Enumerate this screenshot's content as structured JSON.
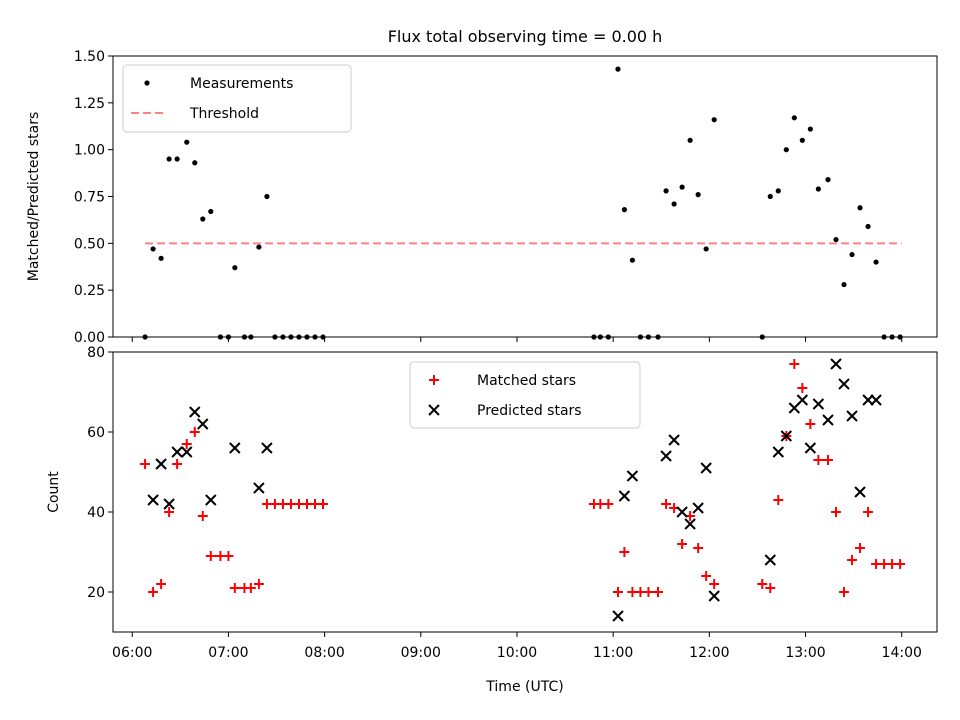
{
  "title": "Flux total observing time = 0.00 h",
  "chart_data": [
    {
      "type": "scatter",
      "ylabel": "Matched/Predicted stars",
      "xlabel": "",
      "xlim": [
        "05:48",
        "14:22"
      ],
      "ylim": [
        0,
        1.5
      ],
      "yticks": [
        0,
        0.25,
        0.5,
        0.75,
        1.0,
        1.25,
        1.5
      ],
      "ytick_labels": [
        "0.00",
        "0.25",
        "0.50",
        "0.75",
        "1.00",
        "1.25",
        "1.50"
      ],
      "legend_position": "upper-left",
      "legend": [
        "Measurements",
        "Threshold"
      ],
      "colors": {
        "measurements": "#000000",
        "threshold": "#ff8080"
      },
      "series": [
        {
          "name": "Measurements",
          "marker": "dot",
          "points": [
            [
              "06:08",
              0.0
            ],
            [
              "06:13",
              0.47
            ],
            [
              "06:18",
              0.42
            ],
            [
              "06:23",
              0.95
            ],
            [
              "06:28",
              0.95
            ],
            [
              "06:34",
              1.04
            ],
            [
              "06:39",
              0.93
            ],
            [
              "06:44",
              0.63
            ],
            [
              "06:49",
              0.67
            ],
            [
              "06:55",
              0.0
            ],
            [
              "07:00",
              0.0
            ],
            [
              "07:04",
              0.37
            ],
            [
              "07:10",
              0.0
            ],
            [
              "07:14",
              0.0
            ],
            [
              "07:19",
              0.48
            ],
            [
              "07:24",
              0.75
            ],
            [
              "07:29",
              0.0
            ],
            [
              "07:34",
              0.0
            ],
            [
              "07:39",
              0.0
            ],
            [
              "07:44",
              0.0
            ],
            [
              "07:49",
              0.0
            ],
            [
              "07:54",
              0.0
            ],
            [
              "07:59",
              0.0
            ],
            [
              "10:48",
              0.0
            ],
            [
              "10:52",
              0.0
            ],
            [
              "10:57",
              0.0
            ],
            [
              "11:03",
              1.43
            ],
            [
              "11:07",
              0.68
            ],
            [
              "11:12",
              0.41
            ],
            [
              "11:17",
              0.0
            ],
            [
              "11:22",
              0.0
            ],
            [
              "11:28",
              0.0
            ],
            [
              "11:33",
              0.78
            ],
            [
              "11:38",
              0.71
            ],
            [
              "11:43",
              0.8
            ],
            [
              "11:48",
              1.05
            ],
            [
              "11:53",
              0.76
            ],
            [
              "11:58",
              0.47
            ],
            [
              "12:03",
              1.16
            ],
            [
              "12:33",
              0.0
            ],
            [
              "12:38",
              0.75
            ],
            [
              "12:43",
              0.78
            ],
            [
              "12:48",
              1.0
            ],
            [
              "12:53",
              1.17
            ],
            [
              "12:58",
              1.05
            ],
            [
              "13:03",
              1.11
            ],
            [
              "13:08",
              0.79
            ],
            [
              "13:14",
              0.84
            ],
            [
              "13:19",
              0.52
            ],
            [
              "13:24",
              0.28
            ],
            [
              "13:29",
              0.44
            ],
            [
              "13:34",
              0.69
            ],
            [
              "13:39",
              0.59
            ],
            [
              "13:44",
              0.4
            ],
            [
              "13:49",
              0.0
            ],
            [
              "13:54",
              0.0
            ],
            [
              "13:59",
              0.0
            ]
          ]
        },
        {
          "name": "Threshold",
          "marker": "dashed-line",
          "points": [
            [
              "06:08",
              0.5
            ],
            [
              "14:00",
              0.5
            ]
          ]
        }
      ]
    },
    {
      "type": "scatter",
      "ylabel": "Count",
      "xlabel": "Time (UTC)",
      "xlim": [
        "05:48",
        "14:22"
      ],
      "ylim": [
        10,
        80
      ],
      "yticks": [
        20,
        40,
        60,
        80
      ],
      "ytick_labels": [
        "20",
        "40",
        "60",
        "80"
      ],
      "xticks": [
        "06:00",
        "07:00",
        "08:00",
        "09:00",
        "10:00",
        "11:00",
        "12:00",
        "13:00",
        "14:00"
      ],
      "legend_position": "upper-center",
      "legend": [
        "Matched stars",
        "Predicted stars"
      ],
      "colors": {
        "matched": "#ff0000",
        "predicted": "#000000"
      },
      "series": [
        {
          "name": "Matched stars",
          "marker": "plus",
          "points": [
            [
              "06:08",
              52
            ],
            [
              "06:13",
              20
            ],
            [
              "06:18",
              22
            ],
            [
              "06:23",
              40
            ],
            [
              "06:28",
              52
            ],
            [
              "06:34",
              57
            ],
            [
              "06:39",
              60
            ],
            [
              "06:44",
              39
            ],
            [
              "06:49",
              29
            ],
            [
              "06:55",
              29
            ],
            [
              "07:00",
              29
            ],
            [
              "07:04",
              21
            ],
            [
              "07:10",
              21
            ],
            [
              "07:14",
              21
            ],
            [
              "07:19",
              22
            ],
            [
              "07:24",
              42
            ],
            [
              "07:29",
              42
            ],
            [
              "07:34",
              42
            ],
            [
              "07:39",
              42
            ],
            [
              "07:44",
              42
            ],
            [
              "07:49",
              42
            ],
            [
              "07:54",
              42
            ],
            [
              "07:59",
              42
            ],
            [
              "10:48",
              42
            ],
            [
              "10:52",
              42
            ],
            [
              "10:57",
              42
            ],
            [
              "11:03",
              20
            ],
            [
              "11:07",
              30
            ],
            [
              "11:12",
              20
            ],
            [
              "11:17",
              20
            ],
            [
              "11:22",
              20
            ],
            [
              "11:28",
              20
            ],
            [
              "11:33",
              42
            ],
            [
              "11:38",
              41
            ],
            [
              "11:43",
              32
            ],
            [
              "11:48",
              39
            ],
            [
              "11:53",
              31
            ],
            [
              "11:58",
              24
            ],
            [
              "12:03",
              22
            ],
            [
              "12:33",
              22
            ],
            [
              "12:38",
              21
            ],
            [
              "12:43",
              43
            ],
            [
              "12:48",
              59
            ],
            [
              "12:53",
              77
            ],
            [
              "12:58",
              71
            ],
            [
              "13:03",
              62
            ],
            [
              "13:08",
              53
            ],
            [
              "13:14",
              53
            ],
            [
              "13:19",
              40
            ],
            [
              "13:24",
              20
            ],
            [
              "13:29",
              28
            ],
            [
              "13:34",
              31
            ],
            [
              "13:39",
              40
            ],
            [
              "13:44",
              27
            ],
            [
              "13:49",
              27
            ],
            [
              "13:54",
              27
            ],
            [
              "13:59",
              27
            ]
          ]
        },
        {
          "name": "Predicted stars",
          "marker": "x",
          "points": [
            [
              "06:13",
              43
            ],
            [
              "06:18",
              52
            ],
            [
              "06:23",
              42
            ],
            [
              "06:28",
              55
            ],
            [
              "06:34",
              55
            ],
            [
              "06:39",
              65
            ],
            [
              "06:44",
              62
            ],
            [
              "06:49",
              43
            ],
            [
              "07:04",
              56
            ],
            [
              "07:19",
              46
            ],
            [
              "07:24",
              56
            ],
            [
              "11:03",
              14
            ],
            [
              "11:07",
              44
            ],
            [
              "11:12",
              49
            ],
            [
              "11:33",
              54
            ],
            [
              "11:38",
              58
            ],
            [
              "11:43",
              40
            ],
            [
              "11:48",
              37
            ],
            [
              "11:53",
              41
            ],
            [
              "11:58",
              51
            ],
            [
              "12:03",
              19
            ],
            [
              "12:38",
              28
            ],
            [
              "12:43",
              55
            ],
            [
              "12:48",
              59
            ],
            [
              "12:53",
              66
            ],
            [
              "12:58",
              68
            ],
            [
              "13:03",
              56
            ],
            [
              "13:08",
              67
            ],
            [
              "13:14",
              63
            ],
            [
              "13:19",
              77
            ],
            [
              "13:24",
              72
            ],
            [
              "13:29",
              64
            ],
            [
              "13:34",
              45
            ],
            [
              "13:39",
              68
            ],
            [
              "13:44",
              68
            ]
          ]
        }
      ]
    }
  ]
}
